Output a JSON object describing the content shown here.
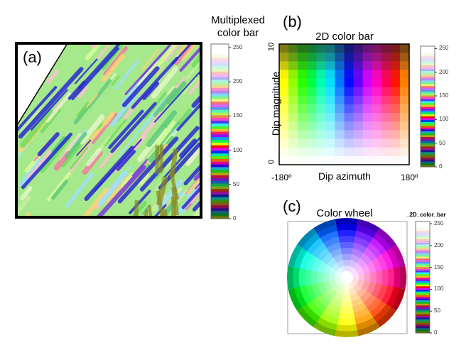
{
  "panel_a": {
    "label": "(a)",
    "colorbar_title_line1": "Multiplexed",
    "colorbar_title_line2": "color bar",
    "colorbar_ticks": [
      "0",
      "50",
      "100",
      "150",
      "200",
      "250"
    ]
  },
  "panel_b": {
    "label": "(b)",
    "title": "2D color bar",
    "ylabel": "Dip magnitude",
    "ymax": "10",
    "ymin": "0",
    "xlabel": "Dip azimuth",
    "xmin": "-180º",
    "xmax": "180º",
    "colorbar_ticks": [
      "0",
      "50",
      "100",
      "150",
      "200",
      "250"
    ]
  },
  "panel_c": {
    "label": "(c)",
    "title": "Color wheel",
    "colorbar_title": "_2D_color_bar",
    "colorbar_ticks": [
      "0",
      "50",
      "100",
      "150",
      "200",
      "250"
    ]
  },
  "colors": {
    "streak_blue": "#2a2ad0",
    "background_green": "#8fe27a",
    "frame": "#000000"
  }
}
